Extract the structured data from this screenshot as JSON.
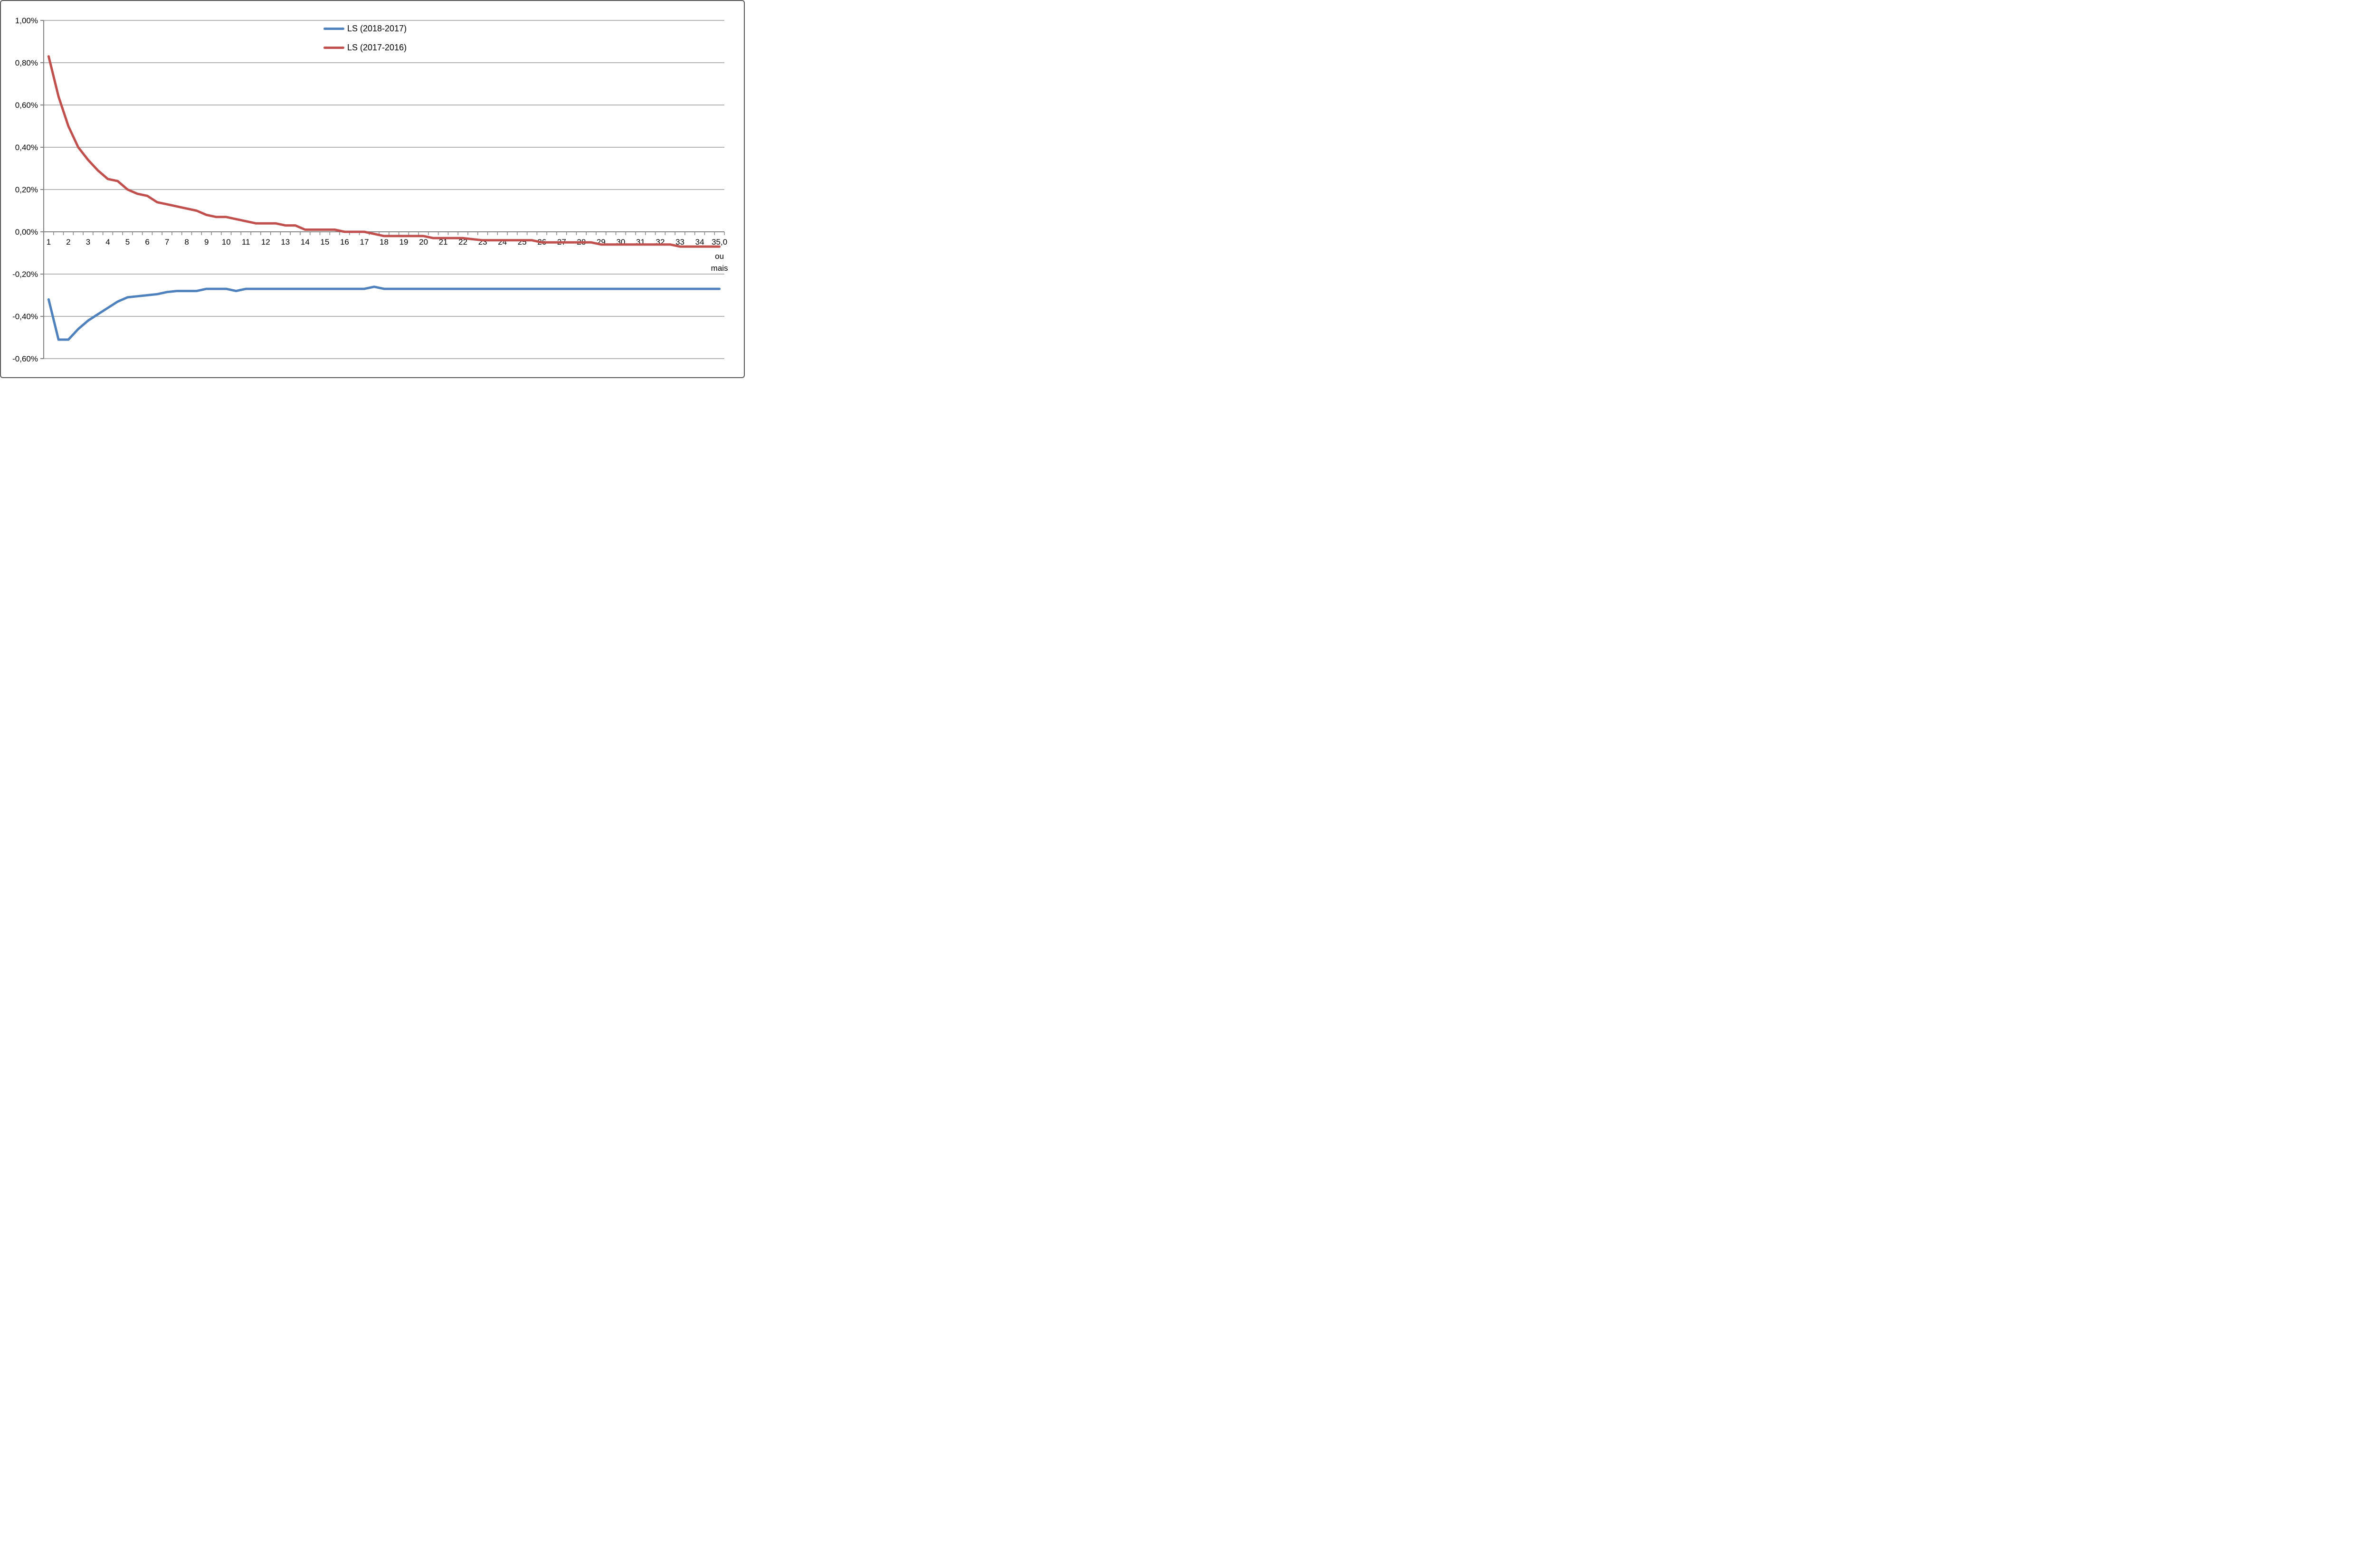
{
  "chart_data": {
    "type": "line",
    "title": "",
    "grid": true,
    "legend_position": "top-center",
    "x": [
      1,
      1.5,
      2,
      2.5,
      3,
      3.5,
      4,
      4.5,
      5,
      5.5,
      6,
      6.5,
      7,
      7.5,
      8,
      8.5,
      9,
      9.5,
      10,
      10.5,
      11,
      11.5,
      12,
      12.5,
      13,
      13.5,
      14,
      14.5,
      15,
      15.5,
      16,
      16.5,
      17,
      17.5,
      18,
      18.5,
      19,
      19.5,
      20,
      20.5,
      21,
      21.5,
      22,
      22.5,
      23,
      23.5,
      24,
      24.5,
      25,
      25.5,
      26,
      26.5,
      27,
      27.5,
      28,
      28.5,
      29,
      29.5,
      30,
      30.5,
      31,
      31.5,
      32,
      32.5,
      33,
      33.5,
      34,
      34.5,
      35
    ],
    "x_axis": {
      "labels": [
        "1",
        "2",
        "3",
        "4",
        "5",
        "6",
        "7",
        "8",
        "9",
        "10",
        "11",
        "12",
        "13",
        "14",
        "15",
        "16",
        "17",
        "18",
        "19",
        "20",
        "21",
        "22",
        "23",
        "24",
        "25",
        "26",
        "27",
        "28",
        "29",
        "30",
        "31",
        "32",
        "33",
        "34",
        "35,0"
      ],
      "last_label_extra_lines": [
        "ou",
        "mais"
      ],
      "label_interval_categories": 2
    },
    "y_axis": {
      "min": -0.6,
      "max": 1.0,
      "step": 0.2,
      "tick_labels": [
        "1,00%",
        "0,80%",
        "0,60%",
        "0,40%",
        "0,20%",
        "0,00%",
        "-0,20%",
        "-0,40%",
        "-0,60%"
      ],
      "number_format": "percent-comma-decimal"
    },
    "series": [
      {
        "name": "LS (2018-2017)",
        "color": "#4F81BD",
        "values": [
          -0.32,
          -0.51,
          -0.51,
          -0.46,
          -0.42,
          -0.39,
          -0.36,
          -0.33,
          -0.31,
          -0.305,
          -0.3,
          -0.295,
          -0.285,
          -0.28,
          -0.28,
          -0.28,
          -0.27,
          -0.27,
          -0.27,
          -0.28,
          -0.27,
          -0.27,
          -0.27,
          -0.27,
          -0.27,
          -0.27,
          -0.27,
          -0.27,
          -0.27,
          -0.27,
          -0.27,
          -0.27,
          -0.27,
          -0.26,
          -0.27,
          -0.27,
          -0.27,
          -0.27,
          -0.27,
          -0.27,
          -0.27,
          -0.27,
          -0.27,
          -0.27,
          -0.27,
          -0.27,
          -0.27,
          -0.27,
          -0.27,
          -0.27,
          -0.27,
          -0.27,
          -0.27,
          -0.27,
          -0.27,
          -0.27,
          -0.27,
          -0.27,
          -0.27,
          -0.27,
          -0.27,
          -0.27,
          -0.27,
          -0.27,
          -0.27,
          -0.27,
          -0.27,
          -0.27,
          -0.27
        ]
      },
      {
        "name": "LS (2017-2016)",
        "color": "#C0504D",
        "values": [
          0.83,
          0.64,
          0.5,
          0.4,
          0.34,
          0.29,
          0.25,
          0.24,
          0.2,
          0.18,
          0.17,
          0.14,
          0.13,
          0.12,
          0.11,
          0.1,
          0.08,
          0.07,
          0.07,
          0.06,
          0.05,
          0.04,
          0.04,
          0.04,
          0.03,
          0.03,
          0.01,
          0.01,
          0.01,
          0.01,
          0.0,
          0.0,
          0.0,
          -0.01,
          -0.02,
          -0.02,
          -0.02,
          -0.02,
          -0.02,
          -0.03,
          -0.03,
          -0.03,
          -0.03,
          -0.035,
          -0.04,
          -0.04,
          -0.04,
          -0.04,
          -0.04,
          -0.04,
          -0.05,
          -0.05,
          -0.05,
          -0.05,
          -0.05,
          -0.05,
          -0.06,
          -0.06,
          -0.06,
          -0.06,
          -0.06,
          -0.06,
          -0.06,
          -0.06,
          -0.07,
          -0.07,
          -0.07,
          -0.07,
          -0.07
        ]
      }
    ],
    "colors": {
      "background": "#FFFFFF",
      "gridline": "#9B9B9B",
      "axis": "#848484",
      "text": "#000000",
      "frame_border": "#565656"
    }
  }
}
